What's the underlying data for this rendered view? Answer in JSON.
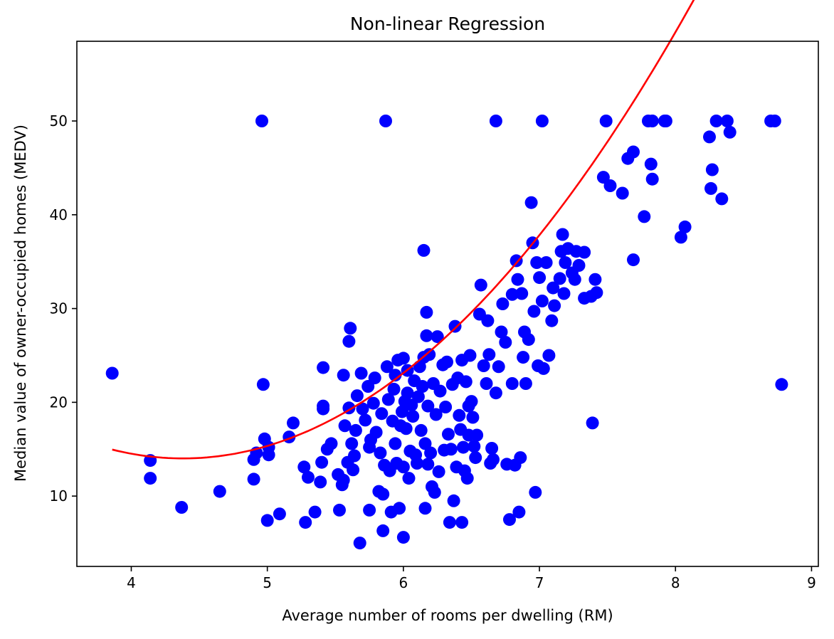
{
  "chart_data": {
    "type": "scatter",
    "title": "Non-linear Regression",
    "xlabel": "Average number of rooms per dwelling (RM)",
    "ylabel": "Median value of owner-occupied homes (MEDV)",
    "xlim": [
      3.6,
      9.05
    ],
    "ylim": [
      2.5,
      58.5
    ],
    "xticks": [
      4,
      5,
      6,
      7,
      8,
      9
    ],
    "yticks": [
      10,
      20,
      30,
      40,
      50
    ],
    "grid": false,
    "colors": {
      "points": "#0000ff",
      "fit": "#ff0000",
      "axes": "#000000"
    },
    "series": [
      {
        "type": "scatter",
        "points": [
          [
            3.86,
            23.1
          ],
          [
            4.14,
            13.8
          ],
          [
            4.14,
            11.9
          ],
          [
            4.37,
            8.8
          ],
          [
            4.65,
            10.5
          ],
          [
            4.9,
            11.8
          ],
          [
            4.9,
            13.9
          ],
          [
            4.92,
            14.6
          ],
          [
            4.96,
            50.0
          ],
          [
            4.97,
            21.9
          ],
          [
            4.98,
            16.1
          ],
          [
            5.0,
            7.4
          ],
          [
            5.01,
            15.2
          ],
          [
            5.01,
            14.4
          ],
          [
            5.09,
            8.1
          ],
          [
            5.16,
            16.3
          ],
          [
            5.19,
            17.8
          ],
          [
            5.27,
            13.1
          ],
          [
            5.28,
            7.2
          ],
          [
            5.3,
            12.0
          ],
          [
            5.35,
            8.3
          ],
          [
            5.39,
            11.5
          ],
          [
            5.4,
            13.6
          ],
          [
            5.41,
            19.6
          ],
          [
            5.41,
            19.3
          ],
          [
            5.41,
            23.7
          ],
          [
            5.44,
            15.0
          ],
          [
            5.47,
            15.6
          ],
          [
            5.52,
            12.3
          ],
          [
            5.53,
            8.5
          ],
          [
            5.55,
            11.2
          ],
          [
            5.56,
            11.7
          ],
          [
            5.56,
            22.9
          ],
          [
            5.57,
            17.5
          ],
          [
            5.59,
            13.6
          ],
          [
            5.6,
            26.5
          ],
          [
            5.6,
            19.4
          ],
          [
            5.61,
            27.9
          ],
          [
            5.62,
            15.6
          ],
          [
            5.63,
            12.8
          ],
          [
            5.64,
            14.3
          ],
          [
            5.65,
            17.0
          ],
          [
            5.66,
            20.7
          ],
          [
            5.68,
            5.0
          ],
          [
            5.69,
            23.1
          ],
          [
            5.7,
            19.3
          ],
          [
            5.72,
            18.1
          ],
          [
            5.74,
            21.7
          ],
          [
            5.75,
            8.5
          ],
          [
            5.75,
            15.2
          ],
          [
            5.76,
            16.0
          ],
          [
            5.78,
            19.9
          ],
          [
            5.79,
            22.6
          ],
          [
            5.8,
            16.8
          ],
          [
            5.82,
            10.5
          ],
          [
            5.83,
            14.6
          ],
          [
            5.84,
            18.8
          ],
          [
            5.85,
            6.3
          ],
          [
            5.85,
            10.2
          ],
          [
            5.86,
            13.3
          ],
          [
            5.87,
            50.0
          ],
          [
            5.88,
            23.8
          ],
          [
            5.89,
            20.3
          ],
          [
            5.9,
            12.7
          ],
          [
            5.91,
            8.3
          ],
          [
            5.92,
            18.0
          ],
          [
            5.93,
            21.4
          ],
          [
            5.94,
            22.9
          ],
          [
            5.94,
            15.6
          ],
          [
            5.95,
            13.5
          ],
          [
            5.96,
            24.5
          ],
          [
            5.97,
            8.7
          ],
          [
            5.98,
            17.5
          ],
          [
            5.99,
            19.0
          ],
          [
            6.0,
            13.1
          ],
          [
            6.0,
            24.7
          ],
          [
            6.0,
            5.6
          ],
          [
            6.01,
            20.1
          ],
          [
            6.02,
            17.2
          ],
          [
            6.03,
            23.4
          ],
          [
            6.03,
            21.0
          ],
          [
            6.04,
            11.9
          ],
          [
            6.05,
            14.8
          ],
          [
            6.06,
            19.7
          ],
          [
            6.07,
            18.5
          ],
          [
            6.08,
            22.3
          ],
          [
            6.09,
            14.4
          ],
          [
            6.1,
            13.5
          ],
          [
            6.11,
            20.6
          ],
          [
            6.12,
            23.8
          ],
          [
            6.13,
            17.0
          ],
          [
            6.14,
            21.7
          ],
          [
            6.15,
            36.2
          ],
          [
            6.15,
            24.8
          ],
          [
            6.16,
            8.7
          ],
          [
            6.16,
            15.6
          ],
          [
            6.17,
            29.6
          ],
          [
            6.17,
            27.1
          ],
          [
            6.18,
            13.4
          ],
          [
            6.18,
            19.6
          ],
          [
            6.19,
            25.1
          ],
          [
            6.2,
            14.6
          ],
          [
            6.21,
            11.0
          ],
          [
            6.22,
            22.0
          ],
          [
            6.23,
            10.4
          ],
          [
            6.24,
            18.7
          ],
          [
            6.25,
            27.0
          ],
          [
            6.26,
            12.6
          ],
          [
            6.27,
            21.2
          ],
          [
            6.29,
            24.0
          ],
          [
            6.3,
            14.9
          ],
          [
            6.31,
            19.5
          ],
          [
            6.32,
            24.3
          ],
          [
            6.33,
            16.6
          ],
          [
            6.34,
            7.2
          ],
          [
            6.35,
            15.0
          ],
          [
            6.36,
            21.9
          ],
          [
            6.37,
            9.5
          ],
          [
            6.38,
            28.1
          ],
          [
            6.39,
            13.1
          ],
          [
            6.4,
            22.6
          ],
          [
            6.41,
            18.6
          ],
          [
            6.42,
            17.1
          ],
          [
            6.43,
            24.5
          ],
          [
            6.43,
            7.2
          ],
          [
            6.44,
            15.2
          ],
          [
            6.45,
            12.7
          ],
          [
            6.46,
            22.2
          ],
          [
            6.47,
            11.9
          ],
          [
            6.48,
            19.6
          ],
          [
            6.48,
            16.5
          ],
          [
            6.49,
            25.0
          ],
          [
            6.5,
            20.1
          ],
          [
            6.51,
            18.4
          ],
          [
            6.52,
            15.3
          ],
          [
            6.53,
            14.1
          ],
          [
            6.54,
            16.5
          ],
          [
            6.56,
            29.4
          ],
          [
            6.57,
            32.5
          ],
          [
            6.59,
            23.9
          ],
          [
            6.61,
            22.0
          ],
          [
            6.62,
            28.7
          ],
          [
            6.63,
            25.1
          ],
          [
            6.64,
            13.5
          ],
          [
            6.65,
            15.1
          ],
          [
            6.66,
            13.9
          ],
          [
            6.68,
            21.0
          ],
          [
            6.68,
            50.0
          ],
          [
            6.7,
            23.8
          ],
          [
            6.72,
            27.5
          ],
          [
            6.73,
            30.5
          ],
          [
            6.75,
            26.4
          ],
          [
            6.76,
            13.4
          ],
          [
            6.78,
            7.5
          ],
          [
            6.8,
            22.0
          ],
          [
            6.8,
            31.5
          ],
          [
            6.82,
            13.3
          ],
          [
            6.83,
            35.1
          ],
          [
            6.84,
            33.1
          ],
          [
            6.85,
            8.3
          ],
          [
            6.86,
            14.1
          ],
          [
            6.87,
            31.6
          ],
          [
            6.88,
            24.8
          ],
          [
            6.89,
            27.5
          ],
          [
            6.9,
            22.0
          ],
          [
            6.92,
            26.7
          ],
          [
            6.94,
            41.3
          ],
          [
            6.95,
            37.0
          ],
          [
            6.96,
            29.7
          ],
          [
            6.97,
            10.4
          ],
          [
            6.98,
            34.9
          ],
          [
            6.99,
            23.9
          ],
          [
            7.0,
            33.3
          ],
          [
            7.02,
            50.0
          ],
          [
            7.02,
            30.8
          ],
          [
            7.03,
            23.6
          ],
          [
            7.05,
            34.9
          ],
          [
            7.07,
            25.0
          ],
          [
            7.09,
            28.7
          ],
          [
            7.1,
            32.2
          ],
          [
            7.11,
            30.3
          ],
          [
            7.15,
            33.2
          ],
          [
            7.16,
            36.1
          ],
          [
            7.17,
            37.9
          ],
          [
            7.18,
            31.6
          ],
          [
            7.19,
            34.9
          ],
          [
            7.21,
            36.4
          ],
          [
            7.24,
            33.8
          ],
          [
            7.26,
            33.1
          ],
          [
            7.27,
            36.1
          ],
          [
            7.29,
            34.6
          ],
          [
            7.33,
            31.1
          ],
          [
            7.33,
            36.0
          ],
          [
            7.38,
            31.3
          ],
          [
            7.39,
            17.8
          ],
          [
            7.41,
            33.1
          ],
          [
            7.42,
            31.7
          ],
          [
            7.47,
            44.0
          ],
          [
            7.49,
            50.0
          ],
          [
            7.52,
            43.1
          ],
          [
            7.61,
            42.3
          ],
          [
            7.65,
            46.0
          ],
          [
            7.69,
            35.2
          ],
          [
            7.69,
            46.7
          ],
          [
            7.77,
            39.8
          ],
          [
            7.8,
            50.0
          ],
          [
            7.82,
            45.4
          ],
          [
            7.83,
            50.0
          ],
          [
            7.83,
            43.8
          ],
          [
            7.92,
            50.0
          ],
          [
            7.93,
            50.0
          ],
          [
            8.04,
            37.6
          ],
          [
            8.07,
            38.7
          ],
          [
            8.25,
            48.3
          ],
          [
            8.26,
            42.8
          ],
          [
            8.27,
            44.8
          ],
          [
            8.3,
            50.0
          ],
          [
            8.34,
            41.7
          ],
          [
            8.38,
            50.0
          ],
          [
            8.4,
            48.8
          ],
          [
            8.7,
            50.0
          ],
          [
            8.73,
            50.0
          ],
          [
            8.78,
            21.9
          ]
        ]
      },
      {
        "type": "line",
        "x_range": [
          3.86,
          8.78
        ],
        "coefficients": [
          80.6,
          -30.4,
          3.47
        ]
      }
    ]
  }
}
